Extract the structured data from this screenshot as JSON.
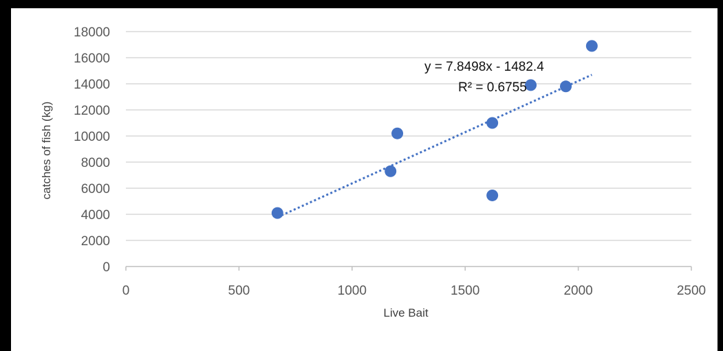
{
  "chart_data": {
    "type": "scatter",
    "xlabel": "Live Bait",
    "ylabel": "catches of fish (kg)",
    "xlim": [
      0,
      2500
    ],
    "ylim": [
      0,
      18000
    ],
    "x_ticks": [
      0,
      500,
      1000,
      1500,
      2000,
      2500
    ],
    "y_ticks": [
      0,
      2000,
      4000,
      6000,
      8000,
      10000,
      12000,
      14000,
      16000,
      18000
    ],
    "grid": "horizontal",
    "series": [
      {
        "color": "#4472C4",
        "points": [
          {
            "x": 670,
            "y": 4100
          },
          {
            "x": 1170,
            "y": 7300
          },
          {
            "x": 1200,
            "y": 10200
          },
          {
            "x": 1620,
            "y": 11000
          },
          {
            "x": 1620,
            "y": 5450
          },
          {
            "x": 1790,
            "y": 13900
          },
          {
            "x": 1945,
            "y": 13800
          },
          {
            "x": 2060,
            "y": 16900
          }
        ]
      }
    ],
    "trendline": {
      "type": "linear",
      "slope": 7.8498,
      "intercept": -1482.4,
      "x_range": [
        670,
        2060
      ],
      "style": "dotted",
      "color": "#4472C4",
      "equation_label": "y = 7.8498x - 1482.4",
      "r2_label": "R² = 0.6755"
    }
  }
}
